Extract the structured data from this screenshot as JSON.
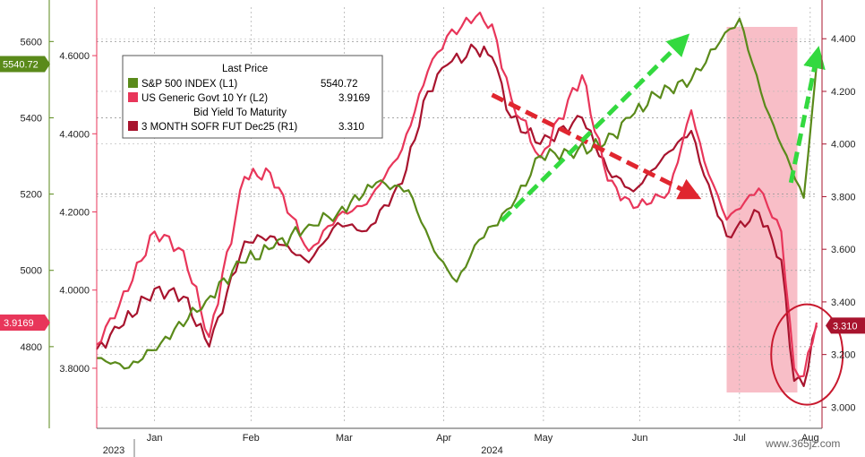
{
  "chart_data": {
    "type": "line",
    "x_start": "2023-12-29",
    "x_end": "2024-08-09",
    "months": [
      {
        "label": "Jan",
        "date": "2024-01-16"
      },
      {
        "label": "Feb",
        "date": "2024-02-15"
      },
      {
        "label": "Mar",
        "date": "2024-03-15"
      },
      {
        "label": "Apr",
        "date": "2024-04-15"
      },
      {
        "label": "May",
        "date": "2024-05-16"
      },
      {
        "label": "Jun",
        "date": "2024-06-15"
      },
      {
        "label": "Jul",
        "date": "2024-07-16"
      },
      {
        "label": "Aug",
        "date": "2024-08-07"
      }
    ],
    "year_labels": [
      {
        "label": "2023",
        "date": "2024-01-01"
      },
      {
        "label": "2024",
        "date": "2024-04-30"
      }
    ],
    "axis_L1": {
      "ticks": [
        "4800",
        "5000",
        "5200",
        "5400",
        "5600"
      ],
      "range": [
        4600,
        5690
      ]
    },
    "axis_L2": {
      "ticks": [
        "3.8000",
        "4.0000",
        "4.2000",
        "4.4000",
        "4.6000"
      ],
      "range": [
        3.66,
        4.724
      ]
    },
    "axis_R1": {
      "ticks": [
        "3.000",
        "3.200",
        "3.400",
        "3.600",
        "3.800",
        "4.000",
        "4.200",
        "4.400"
      ],
      "range": [
        2.94,
        4.52
      ]
    },
    "legend": {
      "title": "Last Price",
      "entries": [
        {
          "name": "S&P 500 INDEX  (L1)",
          "value": "5540.72",
          "color": "#5a8a1a"
        },
        {
          "name": "US Generic Govt 10 Yr  (L2)",
          "value": "3.9169",
          "color": "#e8365a"
        },
        {
          "name": "3 MONTH SOFR FUT Dec25  (R1)",
          "value": "3.310",
          "color": "#a8142e"
        }
      ],
      "subtitle": "Bid Yield To Maturity"
    },
    "badges": {
      "L1": "5540.72",
      "L2": "3.9169",
      "R1": "3.310"
    },
    "series": [
      {
        "name": "S&P 500 INDEX  (L1)",
        "axis": "L1",
        "color": "#5a8a1a",
        "x": [
          "2023-12-29",
          "2024-01-08",
          "2024-01-18",
          "2024-02-01",
          "2024-02-12",
          "2024-02-22",
          "2024-03-04",
          "2024-03-13",
          "2024-03-25",
          "2024-04-04",
          "2024-04-12",
          "2024-04-19",
          "2024-04-26",
          "2024-05-06",
          "2024-05-15",
          "2024-05-24",
          "2024-06-04",
          "2024-06-12",
          "2024-06-20",
          "2024-07-01",
          "2024-07-10",
          "2024-07-16",
          "2024-07-24",
          "2024-08-05",
          "2024-08-09"
        ],
        "values": [
          4770,
          4745,
          4810,
          4920,
          5020,
          5060,
          5120,
          5150,
          5230,
          5210,
          5050,
          4970,
          5080,
          5165,
          5300,
          5310,
          5330,
          5400,
          5460,
          5500,
          5600,
          5660,
          5430,
          5190,
          5540
        ]
      },
      {
        "name": "US Generic Govt 10 Yr  (L2)",
        "axis": "L2",
        "color": "#e8365a",
        "x": [
          "2023-12-29",
          "2024-01-05",
          "2024-01-16",
          "2024-01-25",
          "2024-02-02",
          "2024-02-13",
          "2024-02-21",
          "2024-03-04",
          "2024-03-13",
          "2024-03-22",
          "2024-04-02",
          "2024-04-10",
          "2024-04-16",
          "2024-04-25",
          "2024-04-30",
          "2024-05-06",
          "2024-05-15",
          "2024-05-28",
          "2024-06-05",
          "2024-06-13",
          "2024-06-24",
          "2024-07-01",
          "2024-07-05",
          "2024-07-12",
          "2024-07-22",
          "2024-07-29",
          "2024-08-02",
          "2024-08-05",
          "2024-08-09"
        ],
        "values": [
          3.86,
          3.96,
          4.15,
          4.1,
          3.88,
          4.29,
          4.3,
          4.1,
          4.19,
          4.22,
          4.36,
          4.56,
          4.65,
          4.7,
          4.68,
          4.49,
          4.34,
          4.55,
          4.28,
          4.21,
          4.25,
          4.46,
          4.33,
          4.18,
          4.26,
          4.15,
          3.8,
          3.78,
          3.9169
        ]
      },
      {
        "name": "3 MONTH SOFR FUT Dec25  (R1)",
        "axis": "R1",
        "color": "#a8142e",
        "x": [
          "2023-12-29",
          "2024-01-05",
          "2024-01-16",
          "2024-01-25",
          "2024-02-02",
          "2024-02-13",
          "2024-02-21",
          "2024-03-04",
          "2024-03-13",
          "2024-03-22",
          "2024-04-02",
          "2024-04-10",
          "2024-04-16",
          "2024-04-25",
          "2024-04-30",
          "2024-05-06",
          "2024-05-15",
          "2024-05-28",
          "2024-06-05",
          "2024-06-13",
          "2024-06-24",
          "2024-07-01",
          "2024-07-05",
          "2024-07-12",
          "2024-07-22",
          "2024-07-29",
          "2024-08-02",
          "2024-08-05",
          "2024-08-09"
        ],
        "values": [
          3.22,
          3.3,
          3.45,
          3.42,
          3.23,
          3.63,
          3.65,
          3.55,
          3.7,
          3.67,
          3.85,
          4.2,
          4.3,
          4.36,
          4.33,
          4.1,
          4.0,
          4.1,
          3.9,
          3.82,
          3.97,
          4.05,
          3.88,
          3.65,
          3.74,
          3.56,
          3.1,
          3.08,
          3.31
        ]
      }
    ],
    "annotations": [
      {
        "type": "shaded",
        "from": "2024-07-12",
        "to": "2024-08-03",
        "color": "#f7b3bd"
      },
      {
        "type": "ellipse",
        "center_date": "2024-08-06",
        "center_R1": 3.2,
        "color": "#c8192e"
      },
      {
        "type": "arrow",
        "color": "#e0262f",
        "from": [
          "2024-04-30",
          5460,
          "L1"
        ],
        "to": [
          "2024-07-01",
          5200,
          "L1"
        ]
      },
      {
        "type": "arrow",
        "color": "#33d93f",
        "from": [
          "2024-05-03",
          5130,
          "L1"
        ],
        "to": [
          "2024-06-28",
          5600,
          "L1"
        ]
      },
      {
        "type": "arrow",
        "color": "#33d93f",
        "from": [
          "2024-08-01",
          5230,
          "L1"
        ],
        "to": [
          "2024-08-09",
          5560,
          "L1"
        ]
      }
    ],
    "grid": true,
    "legend_position": "top-left"
  },
  "watermark": "www.365jz.com"
}
